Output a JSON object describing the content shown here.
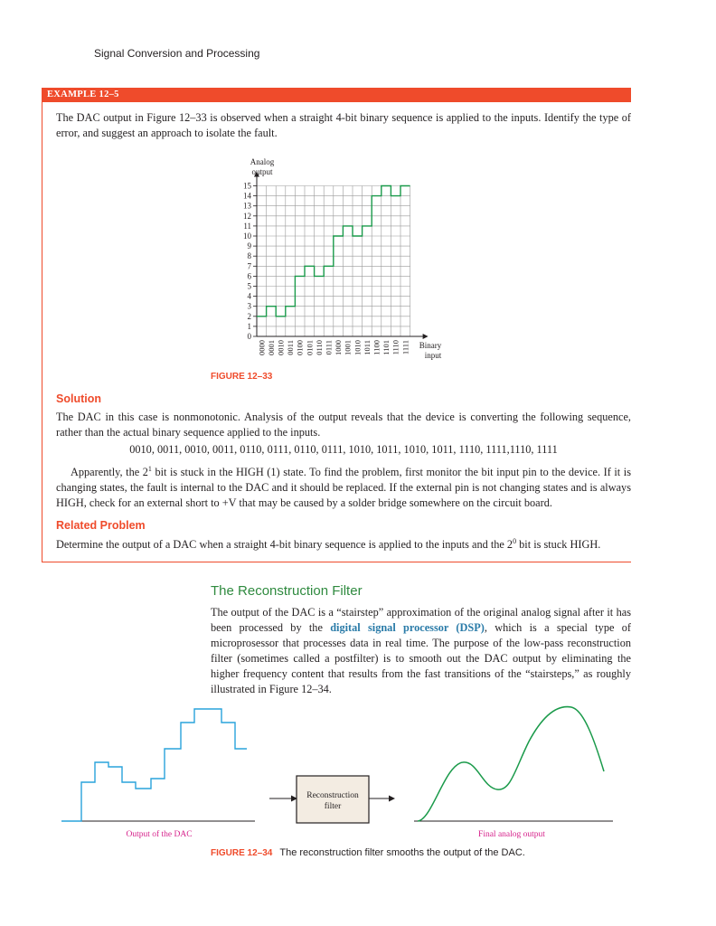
{
  "running_head": "Signal Conversion and Processing",
  "example": {
    "label": "EXAMPLE 12–5",
    "problem": "The DAC output in Figure 12–33 is observed when a straight 4-bit binary sequence is applied to the inputs. Identify the type of error, and suggest an approach to isolate the fault.",
    "figure_label": "FIGURE 12–33",
    "solution_heading": "Solution",
    "solution_p1": "The DAC in this case is nonmonotonic. Analysis of the output reveals that the device is converting the following sequence, rather than the actual binary sequence applied to the inputs.",
    "sequence": "0010, 0011, 0010, 0011, 0110, 0111, 0110, 0111, 1010, 1011, 1010, 1011, 1110, 1111,1110, 1111",
    "solution_p2_a": "Apparently, the 2",
    "solution_p2_sup": "1",
    "solution_p2_b": " bit is stuck in the HIGH (1) state. To find the problem, first monitor the bit input pin to the device. If it is changing states, the fault is internal to the DAC and it should be replaced. If the external pin is not changing states and is always HIGH, check for an external short to +V that may be caused by a solder bridge somewhere on the circuit board.",
    "related_heading": "Related Problem",
    "related_a": "Determine the output of a DAC when a straight 4-bit binary sequence is applied to the inputs and the 2",
    "related_sup": "0",
    "related_b": " bit is stuck HIGH."
  },
  "section": {
    "title": "The Reconstruction Filter",
    "p_a": "The output of the DAC is a “stairstep” approximation of the original analog signal after it has been processed by the ",
    "term": "digital signal processor (DSP)",
    "p_b": ", which is a special type of microprosessor that processes data in real time. The purpose of the low-pass reconstruction filter (sometimes called a postfilter) is to smooth out the DAC output by eliminating the higher frequency content that results from the fast transitions of the “stairsteps,” as roughly illustrated in Figure 12–34."
  },
  "figure34": {
    "number": "FIGURE 12–34",
    "caption": "The reconstruction filter smooths the output of the DAC.",
    "left_label": "Output of the DAC",
    "box_label_line1": "Reconstruction",
    "box_label_line2": "filter",
    "right_label": "Final analog output"
  },
  "chart_data": {
    "type": "line",
    "ylabel_line1": "Analog",
    "ylabel_line2": "output",
    "xlabel_line1": "Binary",
    "xlabel_line2": "input",
    "categories": [
      "0000",
      "0001",
      "0010",
      "0011",
      "0100",
      "0101",
      "0110",
      "0111",
      "1000",
      "1001",
      "1010",
      "1011",
      "1100",
      "1101",
      "1110",
      "1111"
    ],
    "values": [
      2,
      3,
      2,
      3,
      6,
      7,
      6,
      7,
      10,
      11,
      10,
      11,
      14,
      15,
      14,
      15
    ],
    "yticks": [
      "0",
      "1",
      "2",
      "3",
      "4",
      "5",
      "6",
      "7",
      "8",
      "9",
      "10",
      "11",
      "12",
      "13",
      "14",
      "15"
    ],
    "ylim": [
      0,
      15
    ],
    "grid": true,
    "line_color": "#1a9a4a"
  }
}
